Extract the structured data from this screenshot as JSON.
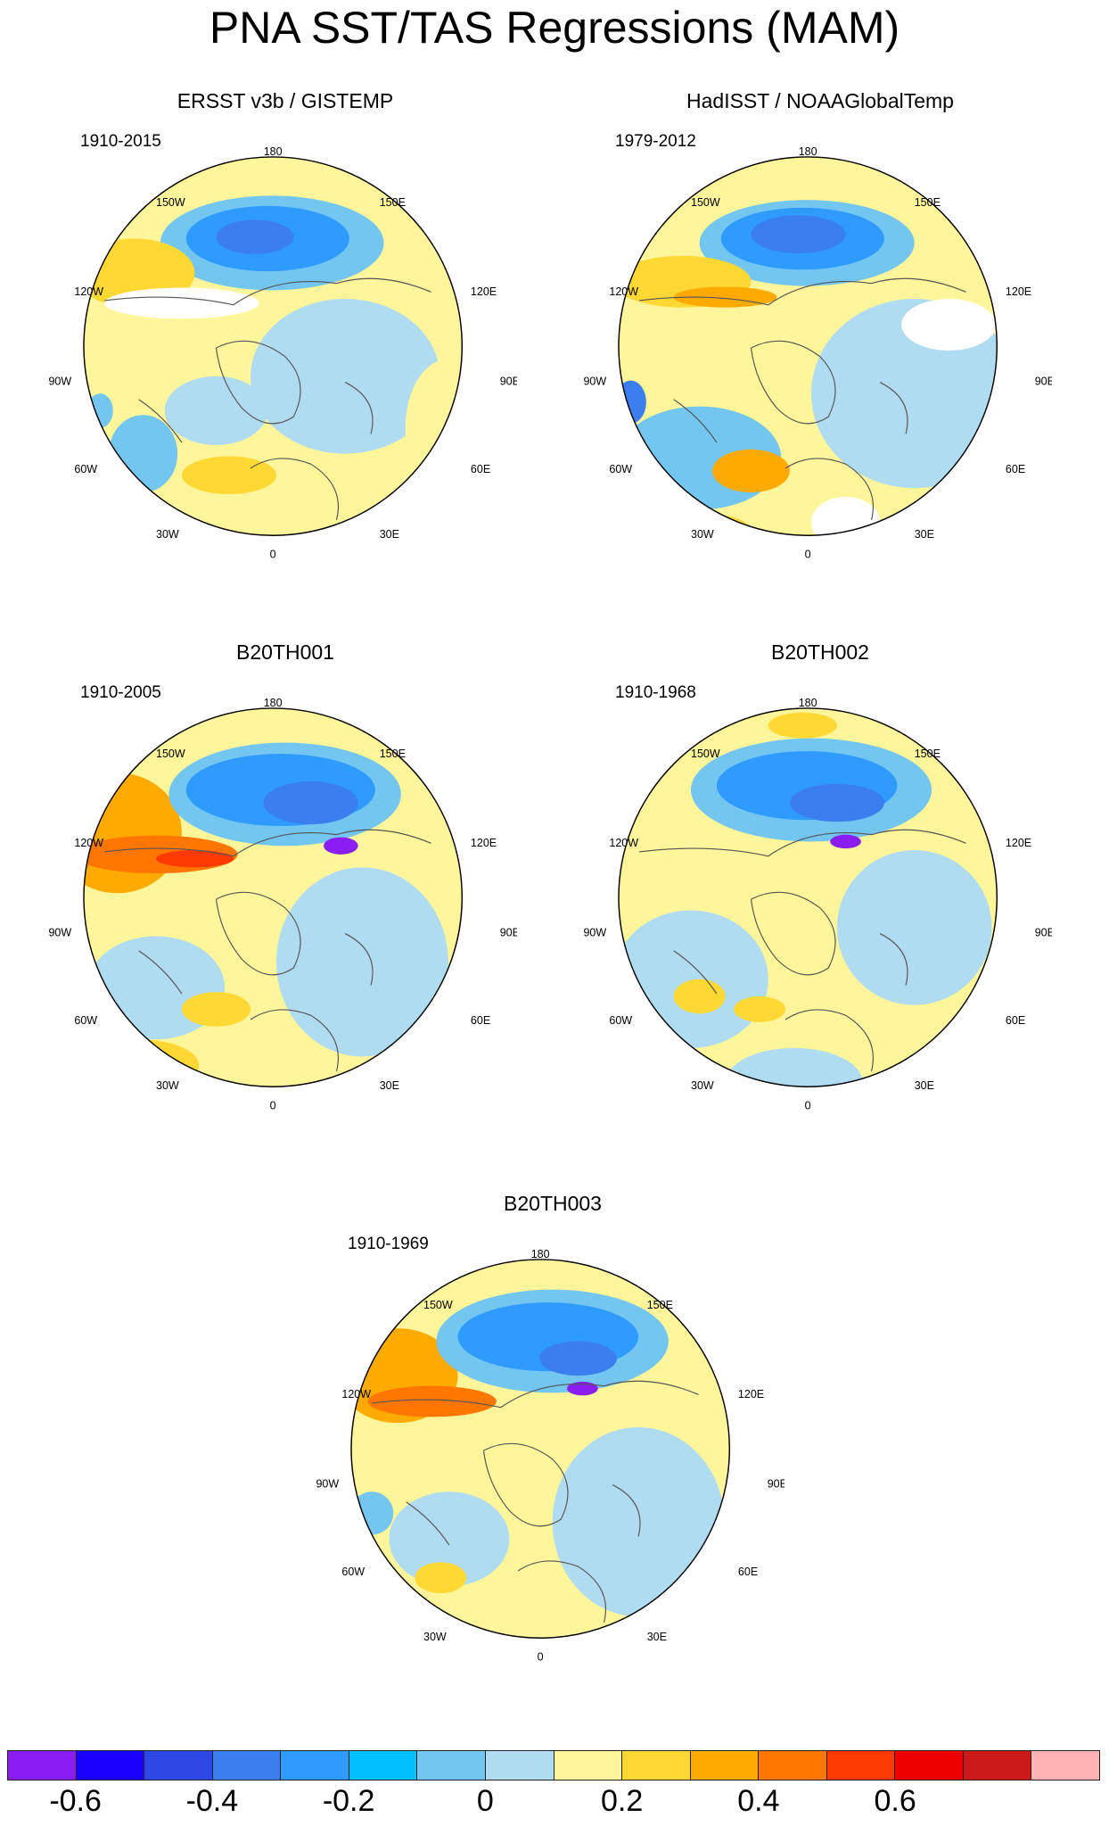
{
  "title": "PNA SST/TAS Regressions (MAM)",
  "lon_labels": {
    "top": "180",
    "bottom": "0",
    "l150": "150W",
    "l120": "120W",
    "l90": "90W",
    "l60": "60W",
    "l30": "30W",
    "r150": "150E",
    "r120": "120E",
    "r90": "90E",
    "r60": "60E",
    "r30": "30E"
  },
  "panels": [
    {
      "title": "ERSST v3b / GISTEMP",
      "period": "1910-2015"
    },
    {
      "title": "HadISST / NOAAGlobalTemp",
      "period": "1979-2012"
    },
    {
      "title": "B20TH001",
      "period": "1910-2005"
    },
    {
      "title": "B20TH002",
      "period": "1910-1968"
    },
    {
      "title": "B20TH003",
      "period": "1910-1969"
    }
  ],
  "colorbar": {
    "colors": [
      "#8a1ef0",
      "#1a00ff",
      "#2e48e6",
      "#3b7ef0",
      "#2f9bff",
      "#00bfff",
      "#73c6f0",
      "#b0dcf2",
      "#fff59a",
      "#ffd833",
      "#ffaa00",
      "#ff7700",
      "#ff3a00",
      "#ee0000",
      "#cc1a1a",
      "#ffb3b3"
    ],
    "labels": [
      "-0.6",
      "-0.4",
      "-0.2",
      "0",
      "0.2",
      "0.4",
      "0.6"
    ],
    "label_values": [
      -0.6,
      -0.4,
      -0.2,
      0,
      0.2,
      0.4,
      0.6
    ],
    "min": -0.7,
    "max": 0.9
  }
}
